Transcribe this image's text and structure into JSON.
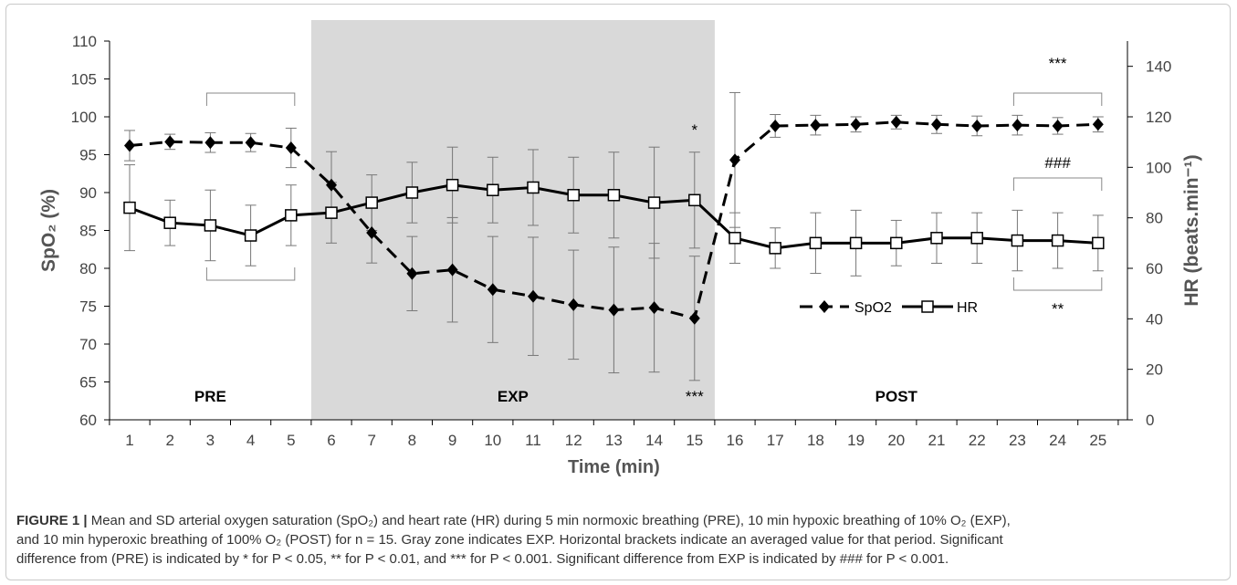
{
  "chart_data": {
    "type": "line",
    "x": [
      1,
      2,
      3,
      4,
      5,
      6,
      7,
      8,
      9,
      10,
      11,
      12,
      13,
      14,
      15,
      16,
      17,
      18,
      19,
      20,
      21,
      22,
      23,
      24,
      25
    ],
    "xlabel": "Time (min)",
    "ylabel_left": "SpO₂ (%)",
    "ylabel_right": "HR (beats.min⁻¹)",
    "ylim_left": [
      60,
      110
    ],
    "ylim_right": [
      0,
      150
    ],
    "yticks_left": [
      60,
      65,
      70,
      75,
      80,
      85,
      90,
      95,
      100,
      105,
      110
    ],
    "yticks_right": [
      0,
      20,
      40,
      60,
      80,
      100,
      120,
      140
    ],
    "shaded_region": {
      "x_from": 5.5,
      "x_to": 15.5,
      "color": "#d9d9d9"
    },
    "series": [
      {
        "name": "SpO2",
        "axis": "left",
        "style": "dashed",
        "marker": "diamond",
        "values": [
          96.2,
          96.7,
          96.6,
          96.6,
          95.9,
          91.0,
          84.7,
          79.3,
          79.8,
          77.2,
          76.3,
          75.2,
          74.5,
          74.8,
          73.4,
          94.3,
          98.8,
          98.9,
          99.0,
          99.3,
          99.0,
          98.8,
          98.9,
          98.8,
          99.0
        ],
        "sd": [
          2.0,
          1.0,
          1.3,
          1.2,
          2.6,
          4.4,
          4.0,
          4.9,
          6.9,
          7.0,
          7.8,
          7.2,
          8.3,
          8.5,
          8.2,
          8.9,
          1.5,
          1.3,
          1.0,
          0.9,
          1.2,
          1.3,
          1.3,
          1.1,
          1.0
        ]
      },
      {
        "name": "HR",
        "axis": "right",
        "style": "solid",
        "marker": "square",
        "values": [
          84,
          78,
          77,
          73,
          81,
          82,
          86,
          90,
          93,
          91,
          92,
          89,
          89,
          86,
          87,
          72,
          68,
          70,
          70,
          70,
          72,
          72,
          71,
          71,
          70
        ],
        "sd": [
          17,
          9,
          14,
          12,
          12,
          12,
          11,
          12,
          15,
          13,
          15,
          15,
          17,
          22,
          19,
          10,
          8,
          12,
          13,
          9,
          10,
          10,
          12,
          11,
          11
        ]
      }
    ],
    "legend": {
      "position": "bottom-right",
      "entries": [
        "SpO2",
        "HR"
      ]
    },
    "annotations": {
      "period_labels": [
        "PRE",
        "EXP",
        "POST"
      ],
      "star_15_top": "*",
      "star_15_bottom": "***",
      "stars_post_top": "***",
      "hash_post": "###",
      "stars_post_bottom": "**"
    }
  },
  "caption": {
    "label": "FIGURE 1 |",
    "line1": "Mean and SD arterial oxygen saturation (SpO₂) and heart rate (HR) during 5 min normoxic breathing (PRE), 10 min hypoxic breathing of 10% O₂ (EXP),",
    "line2": "and 10 min hyperoxic breathing of 100% O₂ (POST) for n = 15. Gray zone indicates EXP. Horizontal brackets indicate an averaged value for that period. Significant",
    "line3": "difference from (PRE) is indicated by * for P < 0.05, ** for P < 0.01, and *** for P < 0.001. Significant difference from EXP is indicated by ### for P < 0.001."
  }
}
